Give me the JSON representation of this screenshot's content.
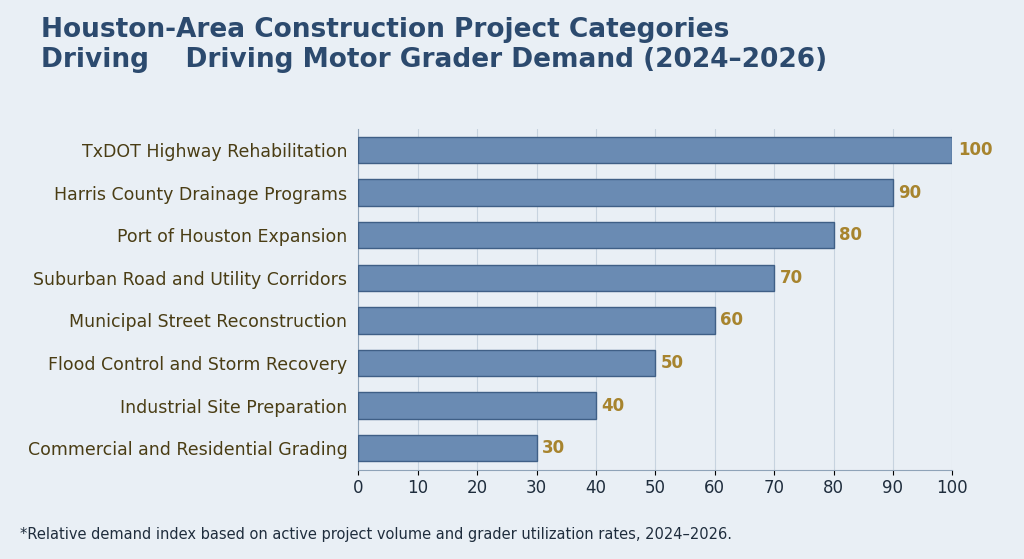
{
  "chart_data": {
    "type": "bar",
    "orientation": "horizontal",
    "title": "Houston-Area Construction Project Categories\nDriving    Driving Motor Grader Demand (2024–2026)",
    "categories": [
      "TxDOT Highway Rehabilitation",
      "Harris County Drainage Programs",
      "Port of Houston Expansion",
      "Suburban Road and Utility Corridors",
      "Municipal Street Reconstruction",
      "Flood Control and Storm Recovery",
      "Industrial Site Preparation",
      "Commercial and Residential Grading"
    ],
    "values": [
      100,
      90,
      80,
      70,
      60,
      50,
      40,
      30
    ],
    "color": "#6a8bb3",
    "xlim": [
      0,
      100
    ],
    "xticks": [
      0,
      10,
      20,
      30,
      40,
      50,
      60,
      70,
      80,
      90,
      100
    ],
    "grid": true,
    "data_labels": true,
    "note": "*Relative demand index based on active project volume and grader utilization rates, 2024–2026."
  }
}
